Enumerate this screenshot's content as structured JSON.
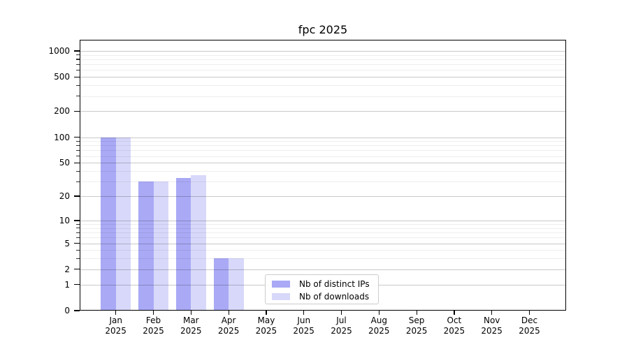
{
  "chart_data": {
    "type": "bar",
    "title": "fpc 2025",
    "categories": [
      {
        "month": "Jan",
        "year": "2025"
      },
      {
        "month": "Feb",
        "year": "2025"
      },
      {
        "month": "Mar",
        "year": "2025"
      },
      {
        "month": "Apr",
        "year": "2025"
      },
      {
        "month": "May",
        "year": "2025"
      },
      {
        "month": "Jun",
        "year": "2025"
      },
      {
        "month": "Jul",
        "year": "2025"
      },
      {
        "month": "Aug",
        "year": "2025"
      },
      {
        "month": "Sep",
        "year": "2025"
      },
      {
        "month": "Oct",
        "year": "2025"
      },
      {
        "month": "Nov",
        "year": "2025"
      },
      {
        "month": "Dec",
        "year": "2025"
      }
    ],
    "series": [
      {
        "name": "Nb of distinct IPs",
        "slug": "distinct-ips",
        "color": "#a9a9f5",
        "values": [
          100,
          30,
          33,
          3,
          0,
          0,
          0,
          0,
          0,
          0,
          0,
          0
        ]
      },
      {
        "name": "Nb of downloads",
        "slug": "downloads",
        "color": "#d8d8fa",
        "values": [
          100,
          30,
          36,
          3,
          0,
          0,
          0,
          0,
          0,
          0,
          0,
          0
        ]
      }
    ],
    "y_axis": {
      "scale": "log1p",
      "tick_values": [
        0,
        1,
        2,
        5,
        10,
        20,
        50,
        100,
        200,
        500,
        1000
      ],
      "minor_gridline_values": [
        3,
        4,
        6,
        7,
        8,
        9,
        30,
        40,
        60,
        70,
        80,
        90,
        300,
        400,
        600,
        700,
        800,
        900
      ],
      "top_value": 1400
    },
    "legend": {
      "position": "lower center"
    },
    "grid": true,
    "colors": {
      "background": "#ffffff",
      "axis": "#000000",
      "text": "#000000",
      "major_grid": "#c9c9c9",
      "minor_grid": "#eeeeee"
    }
  }
}
